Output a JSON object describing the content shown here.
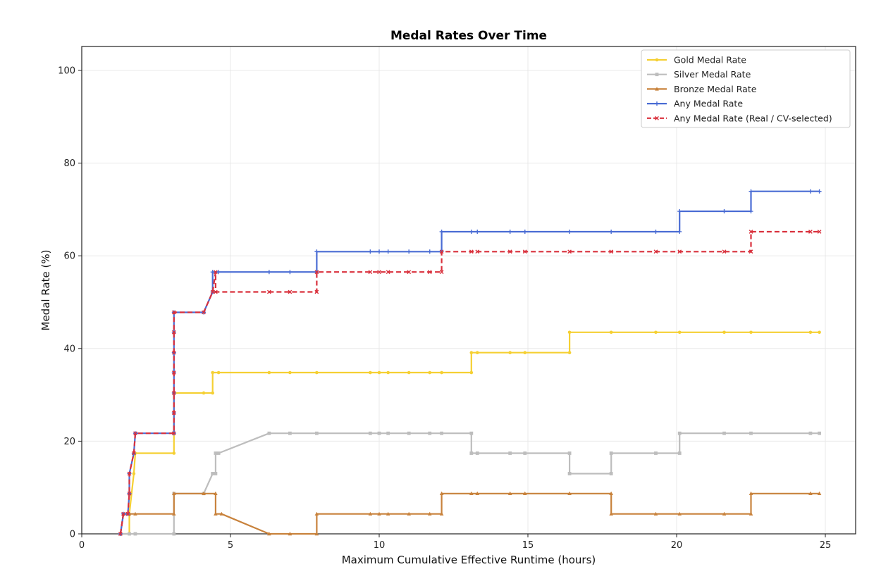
{
  "chart_data": {
    "type": "line",
    "title": "Medal Rates Over Time",
    "xlabel": "Maximum Cumulative Effective Runtime (hours)",
    "ylabel": "Medal Rate (%)",
    "xlim": [
      0,
      26
    ],
    "ylim": [
      0,
      105
    ],
    "xticks": [
      0,
      5,
      10,
      15,
      20,
      25
    ],
    "yticks": [
      0,
      20,
      40,
      60,
      80,
      100
    ],
    "grid": true,
    "legend_position": "top-right",
    "series": [
      {
        "name": "Gold Medal Rate",
        "color": "#F5D033",
        "marker": "circle",
        "dashed": false,
        "points": [
          [
            1.3,
            0
          ],
          [
            1.6,
            0
          ],
          [
            1.6,
            4.3
          ],
          [
            1.75,
            13
          ],
          [
            1.8,
            17.4
          ],
          [
            3.1,
            17.4
          ],
          [
            3.1,
            30.4
          ],
          [
            4.1,
            30.4
          ],
          [
            4.4,
            30.4
          ],
          [
            4.4,
            34.8
          ],
          [
            4.6,
            34.8
          ],
          [
            6.3,
            34.8
          ],
          [
            7,
            34.8
          ],
          [
            7.9,
            34.8
          ],
          [
            9.7,
            34.8
          ],
          [
            10,
            34.8
          ],
          [
            10.3,
            34.8
          ],
          [
            11,
            34.8
          ],
          [
            11.7,
            34.8
          ],
          [
            12.1,
            34.8
          ],
          [
            13.1,
            34.8
          ],
          [
            13.1,
            39.1
          ],
          [
            13.3,
            39.1
          ],
          [
            14.4,
            39.1
          ],
          [
            14.9,
            39.1
          ],
          [
            16.4,
            39.1
          ],
          [
            16.4,
            43.5
          ],
          [
            17.8,
            43.5
          ],
          [
            19.3,
            43.5
          ],
          [
            20.1,
            43.5
          ],
          [
            21.6,
            43.5
          ],
          [
            22.5,
            43.5
          ],
          [
            24.5,
            43.5
          ],
          [
            24.8,
            43.5
          ]
        ]
      },
      {
        "name": "Silver Medal Rate",
        "color": "#BDBDBD",
        "marker": "square",
        "dashed": false,
        "points": [
          [
            1.3,
            0
          ],
          [
            1.6,
            0
          ],
          [
            1.8,
            0
          ],
          [
            3.1,
            0
          ],
          [
            3.1,
            8.7
          ],
          [
            4.1,
            8.7
          ],
          [
            4.4,
            13
          ],
          [
            4.5,
            13
          ],
          [
            4.5,
            17.4
          ],
          [
            4.6,
            17.4
          ],
          [
            6.3,
            21.7
          ],
          [
            7,
            21.7
          ],
          [
            7.9,
            21.7
          ],
          [
            9.7,
            21.7
          ],
          [
            10,
            21.7
          ],
          [
            10.3,
            21.7
          ],
          [
            11,
            21.7
          ],
          [
            11.7,
            21.7
          ],
          [
            12.1,
            21.7
          ],
          [
            13.1,
            21.7
          ],
          [
            13.1,
            17.4
          ],
          [
            13.3,
            17.4
          ],
          [
            14.4,
            17.4
          ],
          [
            14.9,
            17.4
          ],
          [
            16.4,
            17.4
          ],
          [
            16.4,
            13
          ],
          [
            17.8,
            13
          ],
          [
            17.8,
            17.4
          ],
          [
            19.3,
            17.4
          ],
          [
            20.1,
            17.4
          ],
          [
            20.1,
            21.7
          ],
          [
            21.6,
            21.7
          ],
          [
            22.5,
            21.7
          ],
          [
            24.5,
            21.7
          ],
          [
            24.8,
            21.7
          ]
        ]
      },
      {
        "name": "Bronze Medal Rate",
        "color": "#C8823C",
        "marker": "triangle",
        "dashed": false,
        "points": [
          [
            1.3,
            0
          ],
          [
            1.4,
            4.3
          ],
          [
            1.6,
            4.3
          ],
          [
            1.8,
            4.3
          ],
          [
            3.1,
            4.3
          ],
          [
            3.1,
            8.7
          ],
          [
            4.1,
            8.7
          ],
          [
            4.5,
            8.7
          ],
          [
            4.5,
            4.3
          ],
          [
            4.7,
            4.3
          ],
          [
            6.3,
            0
          ],
          [
            7,
            0
          ],
          [
            7.9,
            0
          ],
          [
            7.9,
            4.3
          ],
          [
            9.7,
            4.3
          ],
          [
            10,
            4.3
          ],
          [
            10.3,
            4.3
          ],
          [
            11,
            4.3
          ],
          [
            11.7,
            4.3
          ],
          [
            12.1,
            4.3
          ],
          [
            12.1,
            8.7
          ],
          [
            13.1,
            8.7
          ],
          [
            13.3,
            8.7
          ],
          [
            14.4,
            8.7
          ],
          [
            14.9,
            8.7
          ],
          [
            16.4,
            8.7
          ],
          [
            17.8,
            8.7
          ],
          [
            17.8,
            4.3
          ],
          [
            19.3,
            4.3
          ],
          [
            20.1,
            4.3
          ],
          [
            21.6,
            4.3
          ],
          [
            22.5,
            4.3
          ],
          [
            22.5,
            8.7
          ],
          [
            24.5,
            8.7
          ],
          [
            24.8,
            8.7
          ]
        ]
      },
      {
        "name": "Any Medal Rate",
        "color": "#4A6CD4",
        "marker": "plus",
        "dashed": false,
        "points": [
          [
            1.3,
            0
          ],
          [
            1.4,
            4.3
          ],
          [
            1.55,
            4.3
          ],
          [
            1.6,
            8.7
          ],
          [
            1.6,
            13
          ],
          [
            1.75,
            17.4
          ],
          [
            1.8,
            21.7
          ],
          [
            3.1,
            21.7
          ],
          [
            3.1,
            26.1
          ],
          [
            3.1,
            30.4
          ],
          [
            3.1,
            34.8
          ],
          [
            3.1,
            39.1
          ],
          [
            3.1,
            43.5
          ],
          [
            3.1,
            47.8
          ],
          [
            4.1,
            47.8
          ],
          [
            4.4,
            52.2
          ],
          [
            4.4,
            56.5
          ],
          [
            4.6,
            56.5
          ],
          [
            6.3,
            56.5
          ],
          [
            7,
            56.5
          ],
          [
            7.9,
            56.5
          ],
          [
            7.9,
            60.9
          ],
          [
            9.7,
            60.9
          ],
          [
            10,
            60.9
          ],
          [
            10.3,
            60.9
          ],
          [
            11,
            60.9
          ],
          [
            11.7,
            60.9
          ],
          [
            12.1,
            60.9
          ],
          [
            12.1,
            65.2
          ],
          [
            13.1,
            65.2
          ],
          [
            13.3,
            65.2
          ],
          [
            14.4,
            65.2
          ],
          [
            14.9,
            65.2
          ],
          [
            16.4,
            65.2
          ],
          [
            17.8,
            65.2
          ],
          [
            19.3,
            65.2
          ],
          [
            20.1,
            65.2
          ],
          [
            20.1,
            69.6
          ],
          [
            21.6,
            69.6
          ],
          [
            22.5,
            69.6
          ],
          [
            22.5,
            73.9
          ],
          [
            24.5,
            73.9
          ],
          [
            24.8,
            73.9
          ]
        ]
      },
      {
        "name": "Any Medal Rate (Real / CV-selected)",
        "color": "#D9303C",
        "marker": "x",
        "dashed": true,
        "points": [
          [
            1.3,
            0
          ],
          [
            1.4,
            4.3
          ],
          [
            1.55,
            4.3
          ],
          [
            1.6,
            8.7
          ],
          [
            1.6,
            13
          ],
          [
            1.75,
            17.4
          ],
          [
            1.8,
            21.7
          ],
          [
            3.1,
            21.7
          ],
          [
            3.1,
            26.1
          ],
          [
            3.1,
            30.4
          ],
          [
            3.1,
            34.8
          ],
          [
            3.1,
            39.1
          ],
          [
            3.1,
            43.5
          ],
          [
            3.1,
            47.8
          ],
          [
            4.1,
            47.8
          ],
          [
            4.4,
            52.2
          ],
          [
            4.5,
            56.5
          ],
          [
            4.5,
            52.2
          ],
          [
            6.3,
            52.2
          ],
          [
            7,
            52.2
          ],
          [
            7.9,
            52.2
          ],
          [
            7.9,
            56.5
          ],
          [
            9.7,
            56.5
          ],
          [
            10,
            56.5
          ],
          [
            10.3,
            56.5
          ],
          [
            11,
            56.5
          ],
          [
            11.7,
            56.5
          ],
          [
            12.1,
            56.5
          ],
          [
            12.1,
            60.9
          ],
          [
            13.1,
            60.9
          ],
          [
            13.3,
            60.9
          ],
          [
            14.4,
            60.9
          ],
          [
            14.9,
            60.9
          ],
          [
            16.4,
            60.9
          ],
          [
            17.8,
            60.9
          ],
          [
            19.3,
            60.9
          ],
          [
            20.1,
            60.9
          ],
          [
            21.6,
            60.9
          ],
          [
            22.5,
            60.9
          ],
          [
            22.5,
            65.2
          ],
          [
            24.5,
            65.2
          ],
          [
            24.8,
            65.2
          ]
        ]
      }
    ]
  }
}
